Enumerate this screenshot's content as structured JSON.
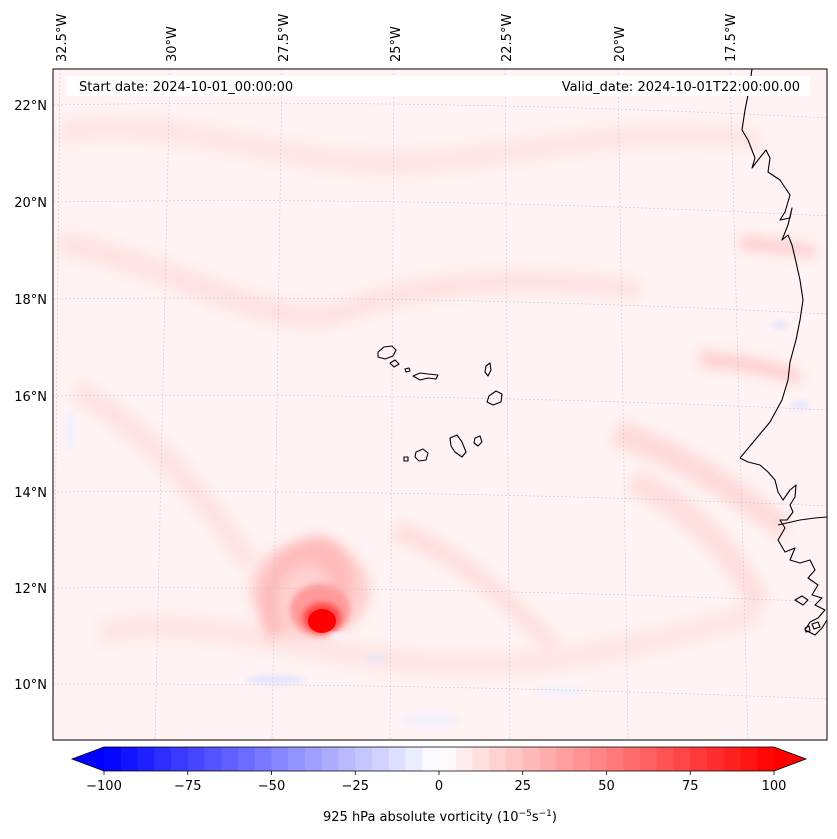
{
  "map": {
    "start_date_text": "Start date: 2024-10-01_00:00:00",
    "valid_date_text": "Valid_date: 2024-10-01T22:00:00.00",
    "lon_labels": [
      "32.5°W",
      "30°W",
      "27.5°W",
      "25°W",
      "22.5°W",
      "20°W",
      "17.5°W"
    ],
    "lat_labels": [
      "22°N",
      "20°N",
      "18°N",
      "16°N",
      "14°N",
      "12°N",
      "10°N"
    ],
    "vortex_center": {
      "lat": 11.3,
      "lon": -26.0
    },
    "islands": "Cape Verde",
    "coastline": "West Africa"
  },
  "colorbar": {
    "label": "925 hPa absolute vorticity (10",
    "label_exp1": "−5",
    "label_mid": "s",
    "label_exp2": "−1",
    "label_close": ")",
    "ticks": [
      "−100",
      "−75",
      "−50",
      "−25",
      "0",
      "25",
      "50",
      "75",
      "100"
    ],
    "min": -100,
    "max": 100,
    "extend": "both",
    "cmap": "bwr",
    "colors": {
      "negative": "#0000ff",
      "zero": "#ffffff",
      "positive": "#ff0000"
    }
  }
}
